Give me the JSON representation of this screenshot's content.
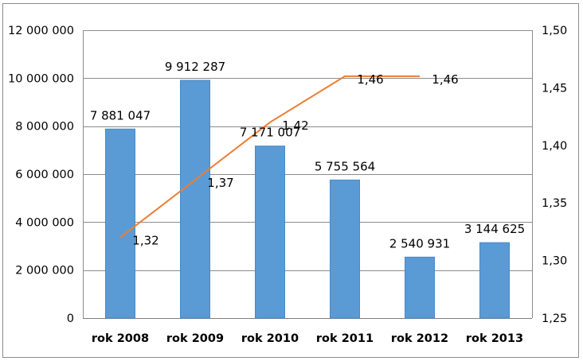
{
  "chart_data": {
    "type": "bar+line",
    "categories": [
      "rok 2008",
      "rok 2009",
      "rok 2010",
      "rok 2011",
      "rok 2012",
      "rok 2013"
    ],
    "bar_series": {
      "values": [
        7881047,
        9912287,
        7171007,
        5755564,
        2540931,
        3144625
      ],
      "labels": [
        "7 881 047",
        "9 912 287",
        "7 171 007",
        "5 755 564",
        "2 540 931",
        "3 144 625"
      ],
      "color": "#5b9bd5",
      "axis": "left"
    },
    "line_series": {
      "points": [
        {
          "category_index": 0,
          "value": 1.32,
          "label": "1,32"
        },
        {
          "category_index": 1,
          "value": 1.37,
          "label": "1,37"
        },
        {
          "category_index": 2,
          "value": 1.42,
          "label": "1,42"
        },
        {
          "category_index": 3,
          "value": 1.46,
          "label": "1,46"
        },
        {
          "category_index": 4,
          "value": 1.46,
          "label": "1,46"
        }
      ],
      "color": "#ed7d31",
      "axis": "right"
    },
    "left_axis": {
      "ylim": [
        0,
        12000000
      ],
      "ticks": [
        0,
        2000000,
        4000000,
        6000000,
        8000000,
        10000000,
        12000000
      ],
      "tick_labels": [
        "0",
        "2 000 000",
        "4 000 000",
        "6 000 000",
        "8 000 000",
        "10 000 000",
        "12 000 000"
      ]
    },
    "right_axis": {
      "ylim": [
        1.25,
        1.5
      ],
      "ticks": [
        1.25,
        1.3,
        1.35,
        1.4,
        1.45,
        1.5
      ],
      "tick_labels": [
        "1,25",
        "1,30",
        "1,35",
        "1,40",
        "1,45",
        "1,50"
      ]
    },
    "grid": true,
    "legend": "none"
  }
}
